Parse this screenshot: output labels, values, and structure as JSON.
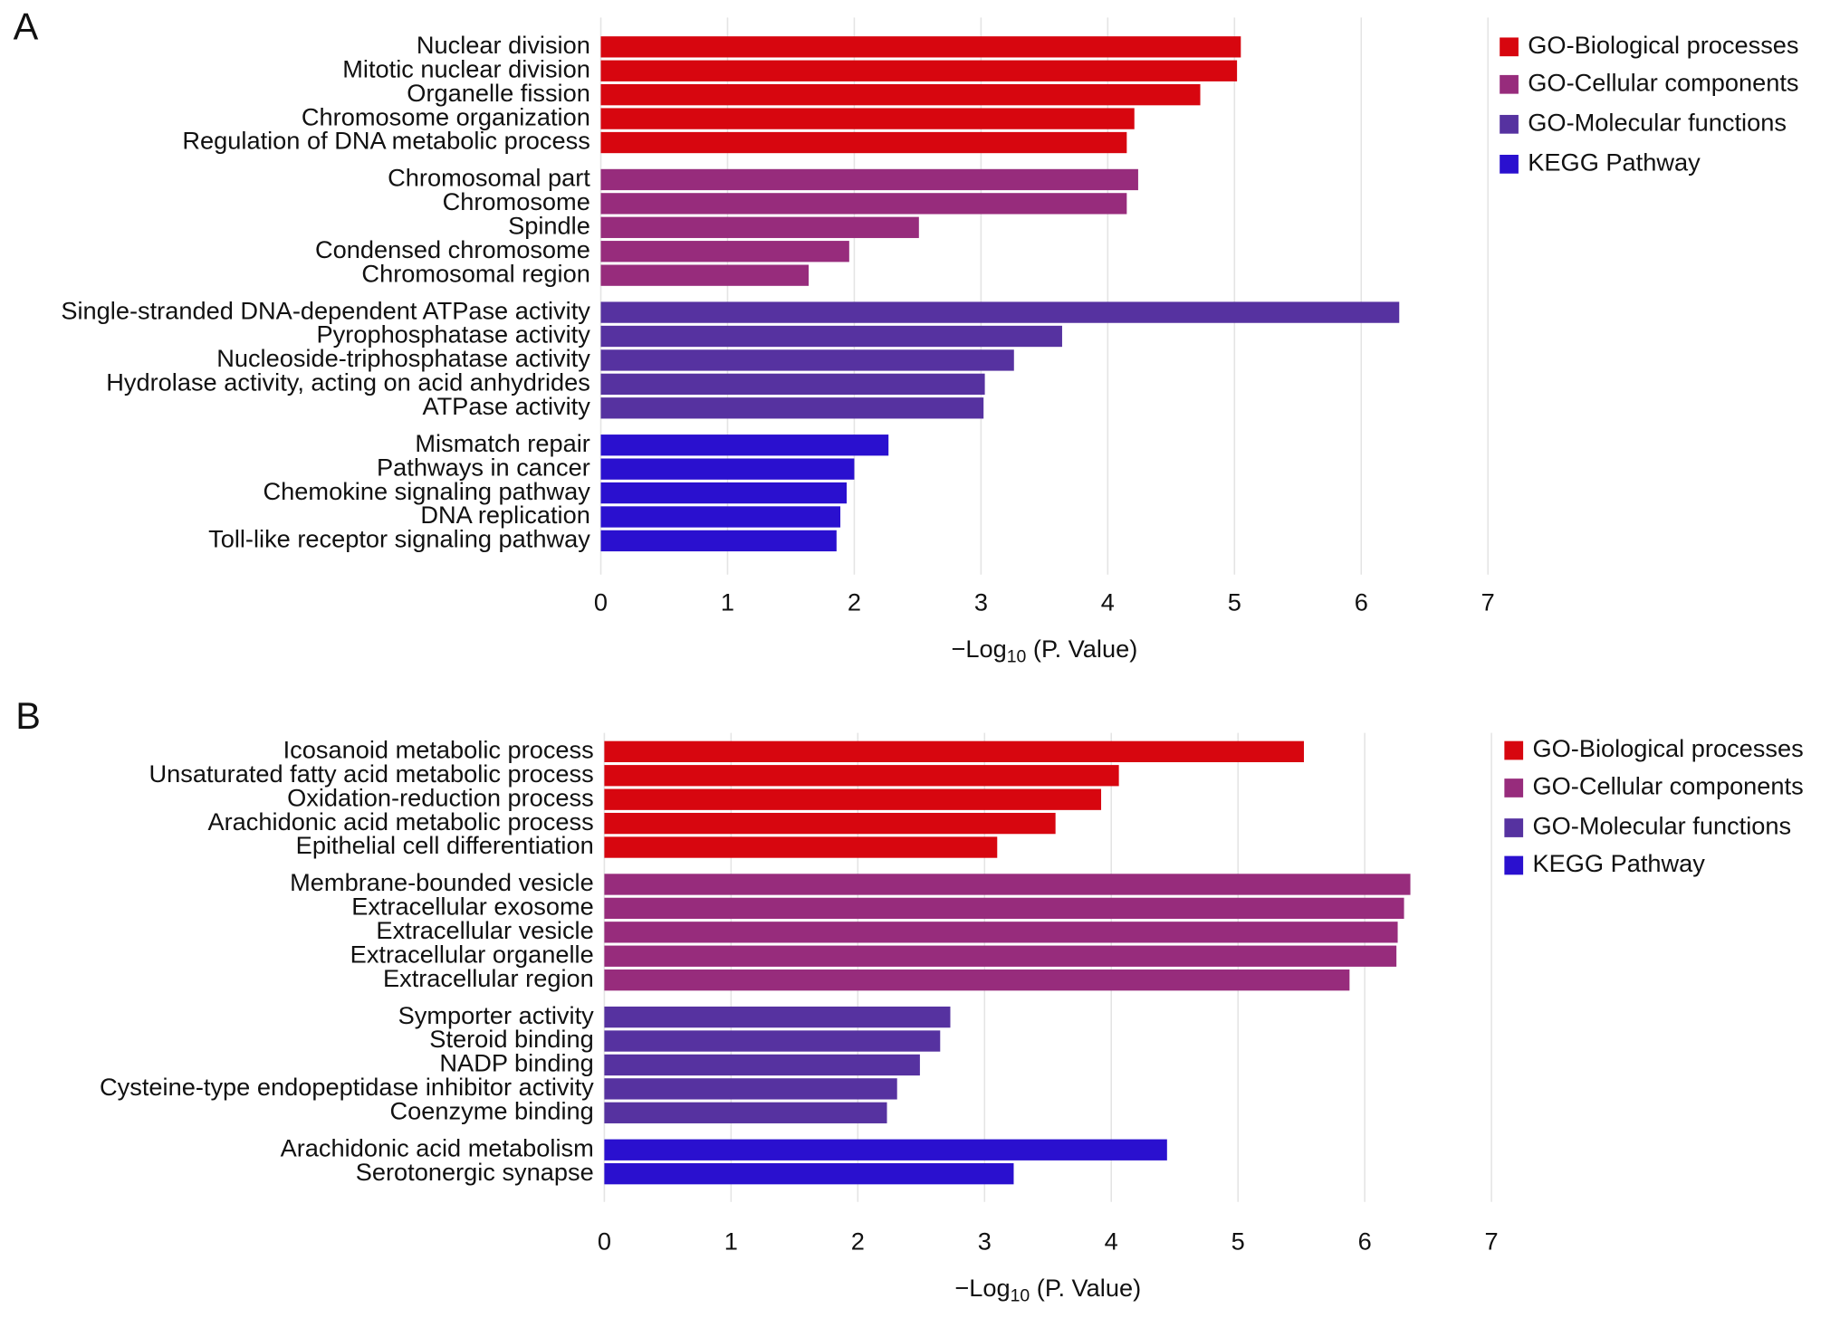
{
  "chart_data": [
    {
      "type": "bar",
      "orientation": "horizontal",
      "panel": "A",
      "x_label": {
        "text": "−Log",
        "subscript": "10",
        "suffix": " (P. Value)"
      },
      "xlim": [
        0,
        7
      ],
      "xticks": [
        0,
        1,
        2,
        3,
        4,
        5,
        6,
        7
      ],
      "grid": true,
      "legend": "right",
      "series": [
        {
          "name": "GO-Biological processes",
          "color": "#d7060f",
          "categories": [
            "Nuclear division",
            "Mitotic nuclear division",
            "Organelle fission",
            "Chromosome organization",
            "Regulation of DNA metabolic process"
          ],
          "values": [
            5.05,
            5.02,
            4.73,
            4.21,
            4.15
          ]
        },
        {
          "name": "GO-Cellular components",
          "color": "#972c7c",
          "categories": [
            "Chromosomal part",
            "Chromosome",
            "Spindle",
            "Condensed chromosome",
            "Chromosomal region"
          ],
          "values": [
            4.24,
            4.15,
            2.51,
            1.96,
            1.64
          ]
        },
        {
          "name": "GO-Molecular functions",
          "color": "#5632a0",
          "categories": [
            "Single-stranded DNA-dependent ATPase activity",
            "Pyrophosphatase activity",
            "Nucleoside-triphosphatase activity",
            "Hydrolase activity, acting on acid anhydrides",
            "ATPase activity"
          ],
          "values": [
            6.3,
            3.64,
            3.26,
            3.03,
            3.02
          ]
        },
        {
          "name": "KEGG Pathway",
          "color": "#2a10cf",
          "categories": [
            "Mismatch repair",
            "Pathways in cancer",
            "Chemokine signaling pathway",
            "DNA replication",
            "Toll-like receptor signaling pathway"
          ],
          "values": [
            2.27,
            2.0,
            1.94,
            1.89,
            1.86
          ]
        }
      ]
    },
    {
      "type": "bar",
      "orientation": "horizontal",
      "panel": "B",
      "x_label": {
        "text": "−Log",
        "subscript": "10",
        "suffix": " (P. Value)"
      },
      "xlim": [
        0,
        7
      ],
      "xticks": [
        0,
        1,
        2,
        3,
        4,
        5,
        6,
        7
      ],
      "grid": true,
      "legend": "right",
      "series": [
        {
          "name": "GO-Biological processes",
          "color": "#d7060f",
          "categories": [
            "Icosanoid metabolic process",
            "Unsaturated fatty acid metabolic process",
            "Oxidation-reduction process",
            "Arachidonic acid metabolic process",
            "Epithelial cell differentiation"
          ],
          "values": [
            5.52,
            4.06,
            3.92,
            3.56,
            3.1
          ]
        },
        {
          "name": "GO-Cellular components",
          "color": "#972c7c",
          "categories": [
            "Membrane-bounded vesicle",
            "Extracellular exosome",
            "Extracellular vesicle",
            "Extracellular organelle",
            "Extracellular region"
          ],
          "values": [
            6.36,
            6.31,
            6.26,
            6.25,
            5.88
          ]
        },
        {
          "name": "GO-Molecular functions",
          "color": "#5632a0",
          "categories": [
            "Symporter activity",
            "Steroid binding",
            "NADP binding",
            "Cysteine-type endopeptidase inhibitor activity",
            "Coenzyme binding"
          ],
          "values": [
            2.73,
            2.65,
            2.49,
            2.31,
            2.23
          ]
        },
        {
          "name": "KEGG Pathway",
          "color": "#2a10cf",
          "categories": [
            "Arachidonic acid metabolism",
            "Serotonergic synapse"
          ],
          "values": [
            4.44,
            3.23
          ]
        }
      ]
    }
  ]
}
